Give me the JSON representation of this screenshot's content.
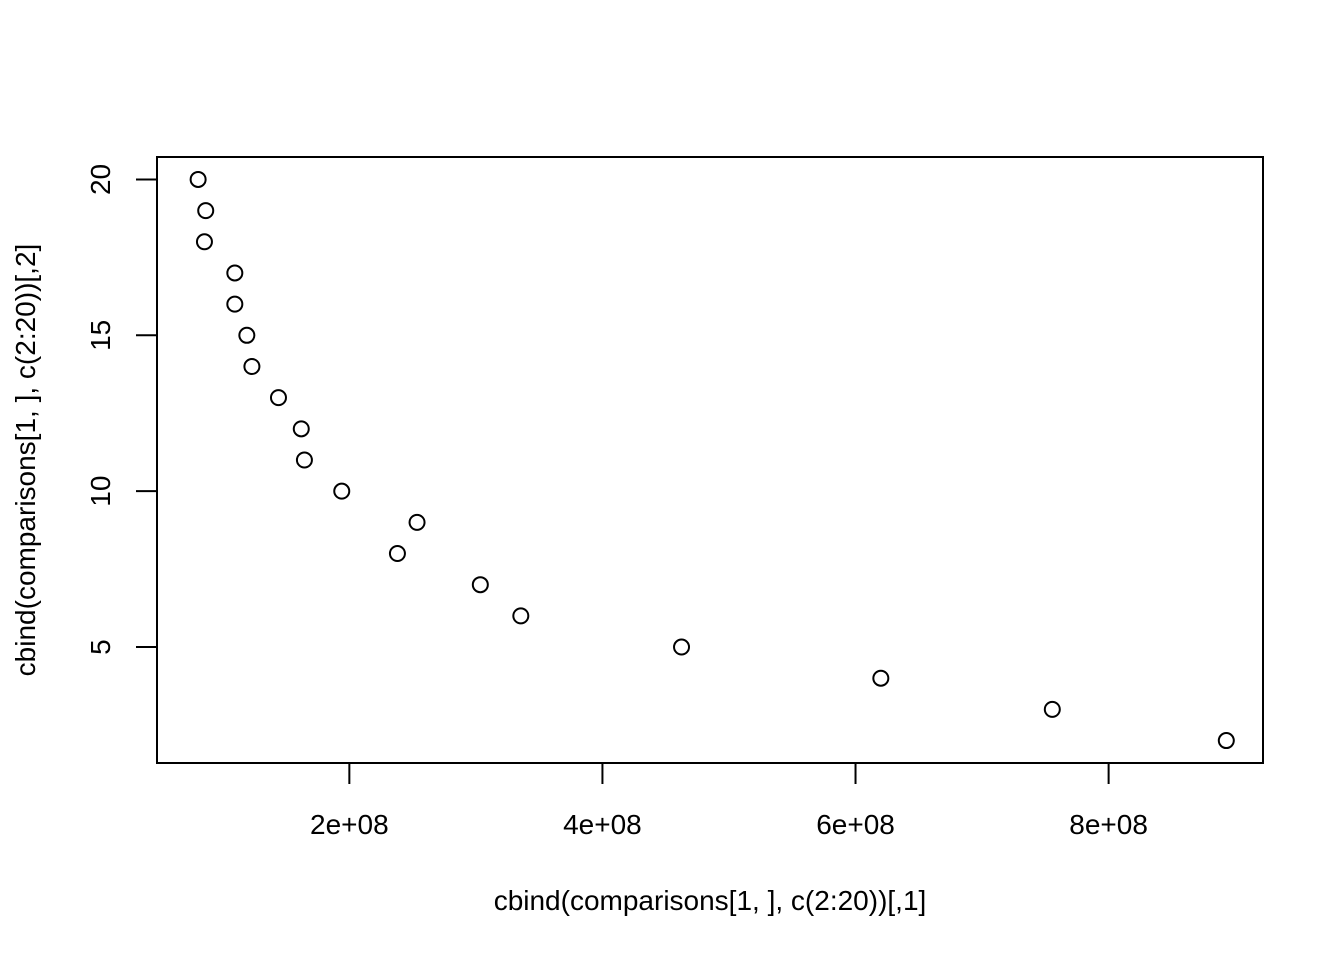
{
  "chart_data": {
    "type": "scatter",
    "title": "",
    "xlabel": "cbind(comparisons[1, ], c(2:20))[,1]",
    "ylabel": "cbind(comparisons[1, ], c(2:20))[,2]",
    "xlim": [
      48000000,
      922000000
    ],
    "ylim": [
      1.28,
      20.72
    ],
    "grid": false,
    "legend": "none",
    "marker": "open-circle",
    "x_ticks": [
      {
        "value": 200000000,
        "label": "2e+08"
      },
      {
        "value": 400000000,
        "label": "4e+08"
      },
      {
        "value": 600000000,
        "label": "6e+08"
      },
      {
        "value": 800000000,
        "label": "8e+08"
      }
    ],
    "y_ticks": [
      {
        "value": 5,
        "label": "5"
      },
      {
        "value": 10,
        "label": "10"
      },
      {
        "value": 15,
        "label": "15"
      },
      {
        "value": 20,
        "label": "20"
      }
    ],
    "points": [
      {
        "x": 80500000,
        "y": 20
      },
      {
        "x": 86500000,
        "y": 19
      },
      {
        "x": 85500000,
        "y": 18
      },
      {
        "x": 109500000,
        "y": 17
      },
      {
        "x": 109500000,
        "y": 16
      },
      {
        "x": 119000000,
        "y": 15
      },
      {
        "x": 123000000,
        "y": 14
      },
      {
        "x": 144000000,
        "y": 13
      },
      {
        "x": 162000000,
        "y": 12
      },
      {
        "x": 164500000,
        "y": 11
      },
      {
        "x": 194000000,
        "y": 10
      },
      {
        "x": 253500000,
        "y": 9
      },
      {
        "x": 238000000,
        "y": 8
      },
      {
        "x": 303500000,
        "y": 7
      },
      {
        "x": 335500000,
        "y": 6
      },
      {
        "x": 462500000,
        "y": 5
      },
      {
        "x": 620000000,
        "y": 4
      },
      {
        "x": 755500000,
        "y": 3
      },
      {
        "x": 893000000,
        "y": 2
      }
    ]
  }
}
